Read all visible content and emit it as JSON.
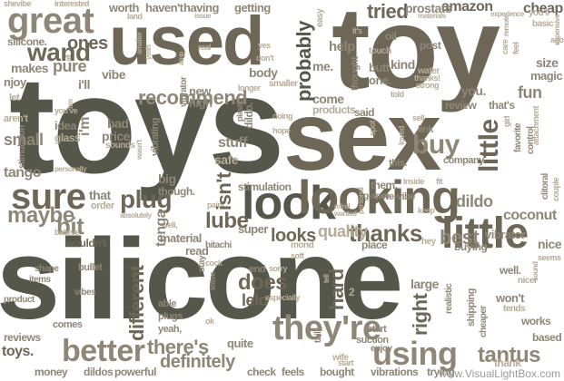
{
  "words": {
    "toys": "toys",
    "silicone": "silicone",
    "toy": "toy",
    "sex": "sex",
    "used": "used",
    "great": "great",
    "look": "look",
    "looking": "looking",
    "little": "little",
    "sure": "sure",
    "theyre": "they're",
    "using": "using",
    "better": "better",
    "wand": "wand",
    "recommend": "recommend",
    "plug": "plug",
    "buy": "buy",
    "thanks": "thanks",
    "maybe": "maybe",
    "bit": "bit",
    "best": "best",
    "tried": "tried",
    "amazon": "amazon",
    "probably": "probably",
    "different": "different",
    "dildo": "dildo",
    "lube": "lube",
    "looks": "looks",
    "quality": "quality",
    "does": "does",
    "lelo": "lelo",
    "hard": "hard",
    "tantus": "tantus",
    "theres": "there's",
    "definitely": "definitely",
    "coconut": "coconut",
    "nice": "nice",
    "fun": "fun",
    "pure": "pure",
    "stuff": "stuff",
    "safe": "safe",
    "isnt": "isn't",
    "small": "small",
    "tango": "tango",
    "ones": "ones",
    "worth": "worth",
    "havent": "haven't",
    "having": "having",
    "getting": "getting",
    "cheap": "cheap",
    "prostate": "prostate",
    "oil": "oil",
    "post": "post",
    "kind": "kind",
    "help": "help",
    "size": "size",
    "magic": "magic",
    "come": "come",
    "products": "products",
    "review": "review",
    "super": "super",
    "material": "material",
    "read": "read",
    "new": "new",
    "high": "high",
    "body": "body",
    "right": "right",
    "large": "large",
    "works": "works",
    "wont": "won't",
    "wouldnt": "wouldn't",
    "reviews": "reviews",
    "money": "money",
    "dildos": "dildos",
    "powerful": "powerful",
    "check": "check",
    "feels": "feels",
    "bought": "bought",
    "vibrations": "vibrations",
    "trying": "trying",
    "thank": "thank",
    "based": "based",
    "vibrator": "vibrator",
    "buying": "buying",
    "place": "place",
    "stimulation": "stimulation",
    "quite": "quite",
    "makes": "makes",
    "idea": "idea",
    "glass": "glass",
    "tenga": "tenga",
    "bad": "bad",
    "price": "price",
    "vibe": "vibe",
    "ill": "i'll",
    "im": "i'm",
    "me": "me.",
    "you": "you.",
    "silicone_dot": "silicone.",
    "vibrating": "vibrating",
    "toys_dot": "toys.",
    "dildo_dot": "dildo.",
    "am": "am",
    "all": "all",
    "able": "able",
    "comes": "comes",
    "start": "start",
    "suction": "suction",
    "enjoy": "enjoy",
    "tell": "tell",
    "cock": "cock",
    "end": "end",
    "sound": "sound",
    "well": "well.",
    "shipping": "shipping",
    "company": "company",
    "thought": "thought",
    "nicer": "nicer",
    "favorite": "favorite",
    "care": "care",
    "feel": "feel",
    "water": "water",
    "strong": "strong",
    "butt": "butt",
    "one": "one.",
    "said": "said",
    "touch": "touch",
    "link": "link",
    "sell": "sell",
    "plugs": "plugs",
    "bullet": "bullet",
    "hitachi": "hitachi",
    "stay": "stay",
    "yeah": "yeah,",
    "cheaper": "cheaper",
    "realistic": "realistic",
    "attachment": "attachment",
    "clitoral": "clitoral",
    "couple": "couple",
    "personally": "personally",
    "leave": "leave",
    "especially": "especially",
    "plastic": "plastic",
    "doing": "doing",
    "vibes": "vibes",
    "items": "items",
    "shape": "shape",
    "product": "product",
    "tends": "tends",
    "ago": "ago",
    "hey": "hey",
    "start2": "start",
    "wife": "wife",
    "tail": "tail",
    "smaller": "smaller",
    "longer": "longer",
    "paint": "paint",
    "sounds": "sounds",
    "njoy": "njoy",
    "let": "let",
    "arent": "aren't",
    "youve": "you've",
    "youll": "you'll",
    "interested": "interested",
    "shevibe": "shevibe",
    "thats": "that's",
    "gspot": "g-spot",
    "wevibe": "we-vibe",
    "them": "them.",
    "this": "this.",
    "though": "though.",
    "that": "that",
    "order": "order",
    "big": "big",
    "hmm": "hmm",
    "mind": "mind",
    "mond": "mond",
    "soft": "soft",
    "thanks2": "thanks!",
    "experience": "experience",
    "expensive": "expensive",
    "basic": "basic",
    "seems": "seems",
    "its": "it's",
    "yes": "yes",
    "wanted": "wanted",
    "personal": "personal",
    "spot": "spot",
    "amp": "amp",
    "well2": "well,",
    "real": "real",
    "wasnt": "wasn't",
    "control": "control",
    "inside": "inside",
    "fit": "fit",
    "keep": "keep",
    "told": "told",
    "loved": "loved",
    "sorry": "sorry",
    "girl": "girl",
    "remote": "remote",
    "easy": "easy",
    "issue": "issue",
    "materials": "materials",
    "land": "land",
    "absolutely": "absolutely",
    "believe": "believe",
    "dont": "don't",
    "hope": "hope",
    "yeah2": "yeah",
    "ok": "ok",
    "bit2": "2"
  },
  "watermark": "www.VisualLightBox.com",
  "colors": {
    "dark": "#55574a",
    "brown": "#6e6656",
    "mid": "#8e8676",
    "light": "#b5ab98",
    "pale": "#d2cab9",
    "darkest": "#45473d",
    "background": "#ffffff"
  }
}
